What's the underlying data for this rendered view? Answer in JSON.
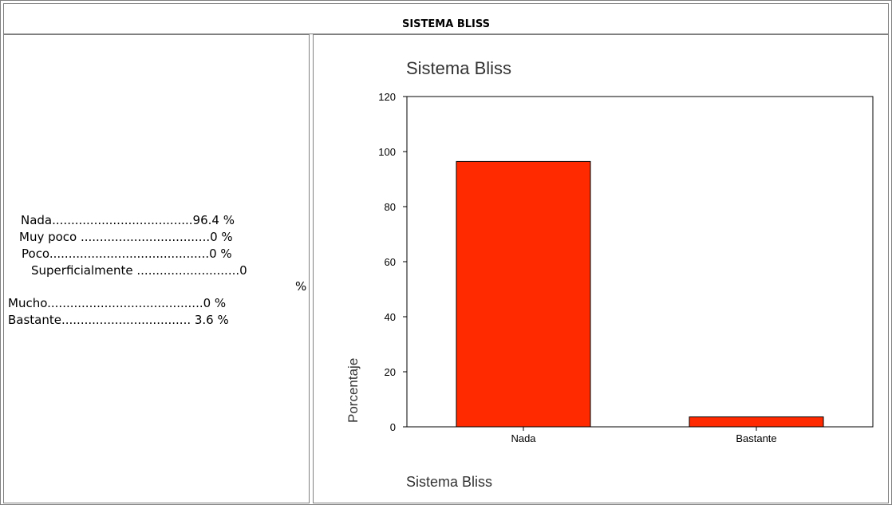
{
  "header": {
    "title": "SISTEMA BLISS"
  },
  "stats": [
    {
      "text": "Nada.....................................96.4 %"
    },
    {
      "text": "Muy poco ..................................0 %"
    },
    {
      "text": "Poco..........................................0 %"
    },
    {
      "text": "Superficialmente ...........................0"
    },
    {
      "text": "%"
    },
    {
      "text": "Mucho.........................................0 %"
    },
    {
      "text": "Bastante.................................. 3.6 %"
    }
  ],
  "chart_data": {
    "type": "bar",
    "title": "Sistema Bliss",
    "categories": [
      "Nada",
      "Bastante"
    ],
    "values": [
      96.4,
      3.6
    ],
    "xlabel": "Sistema Bliss",
    "ylabel": "Porcentaje",
    "ylim": [
      0,
      120
    ],
    "yticks": [
      0,
      20,
      40,
      60,
      80,
      100,
      120
    ],
    "bar_color": "#ff2a00",
    "grid": false,
    "legend": "none"
  }
}
